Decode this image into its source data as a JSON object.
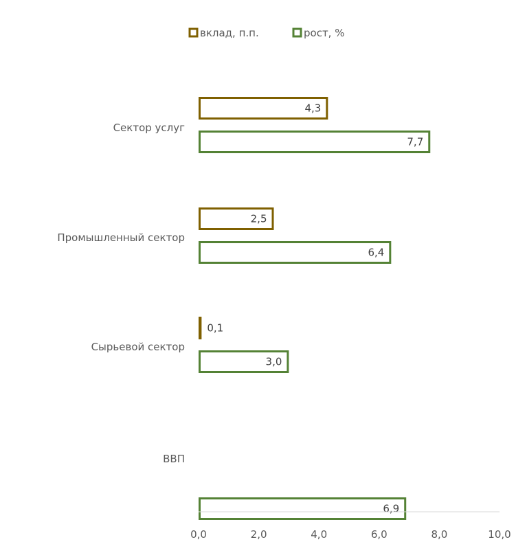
{
  "chart_data": {
    "type": "bar",
    "orientation": "horizontal",
    "categories": [
      "Сектор услуг",
      "Промышленный сектор",
      "Сырьевой сектор",
      "ВВП"
    ],
    "series": [
      {
        "name": "вклад, п.п.",
        "values": [
          4.3,
          2.5,
          0.1,
          null
        ],
        "labels": [
          "4,3",
          "2,5",
          "0,1",
          ""
        ],
        "color": "#7f6000"
      },
      {
        "name": "рост, %",
        "values": [
          7.7,
          6.4,
          3.0,
          6.9
        ],
        "labels": [
          "7,7",
          "6,4",
          "3,0",
          "6,9"
        ],
        "color": "#548235"
      }
    ],
    "x_ticks": [
      "0,0",
      "2,0",
      "4,0",
      "6,0",
      "8,0",
      "10,0"
    ],
    "xlim": [
      0,
      10
    ],
    "legend_position": "top",
    "bar_style": "outline",
    "grid": false
  }
}
